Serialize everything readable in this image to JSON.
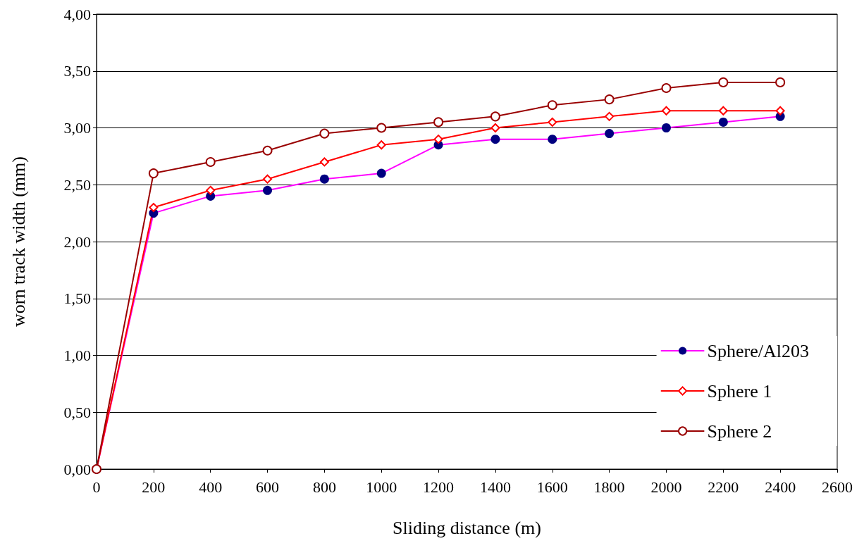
{
  "chart_data": {
    "type": "line",
    "xlabel": "Sliding distance (m)",
    "ylabel": "worn track width (mm)",
    "x": [
      0,
      200,
      400,
      600,
      800,
      1000,
      1200,
      1400,
      1600,
      1800,
      2000,
      2200,
      2400
    ],
    "series": [
      {
        "name": "Sphere/Al203",
        "color": "#ff00ff",
        "colors": [
          "#000080",
          "#000080",
          "#000080",
          "#000080",
          "#000080",
          "#000080",
          "#000080",
          "#000080",
          "#000080",
          "#000080",
          "#000080",
          "#000080",
          "#000080"
        ],
        "marker": "circle",
        "values": [
          0,
          2.25,
          2.4,
          2.45,
          2.55,
          2.6,
          2.85,
          2.9,
          2.9,
          2.95,
          3.0,
          3.05,
          3.1
        ]
      },
      {
        "name": "Sphere 1",
        "color": "#ff0000",
        "marker": "diamond",
        "values": [
          0,
          2.3,
          2.45,
          2.55,
          2.7,
          2.85,
          2.9,
          3.0,
          3.05,
          3.1,
          3.15,
          3.15,
          3.15
        ]
      },
      {
        "name": "Sphere 2",
        "color": "#990000",
        "marker": "circle",
        "values": [
          0,
          2.6,
          2.7,
          2.8,
          2.95,
          3.0,
          3.05,
          3.1,
          3.2,
          3.25,
          3.35,
          3.4,
          3.4
        ]
      }
    ],
    "xlim": [
      0,
      2600
    ],
    "xticks": [
      0,
      200,
      400,
      600,
      800,
      1000,
      1200,
      1400,
      1600,
      1800,
      2000,
      2200,
      2400,
      2600
    ],
    "ylim": [
      0,
      4
    ],
    "yticks": [
      {
        "value": 0,
        "label": "0,00"
      },
      {
        "value": 0.5,
        "label": "0,50"
      },
      {
        "value": 1,
        "label": "1,00"
      },
      {
        "value": 1.5,
        "label": "1,50"
      },
      {
        "value": 2,
        "label": "2,00"
      },
      {
        "value": 2.5,
        "label": "2,50"
      },
      {
        "value": 3,
        "label": "3,00"
      },
      {
        "value": 3.5,
        "label": "3,50"
      },
      {
        "value": 4,
        "label": "4,00"
      }
    ],
    "grid": "y",
    "legend": "bottom right",
    "line_style": "solid"
  }
}
